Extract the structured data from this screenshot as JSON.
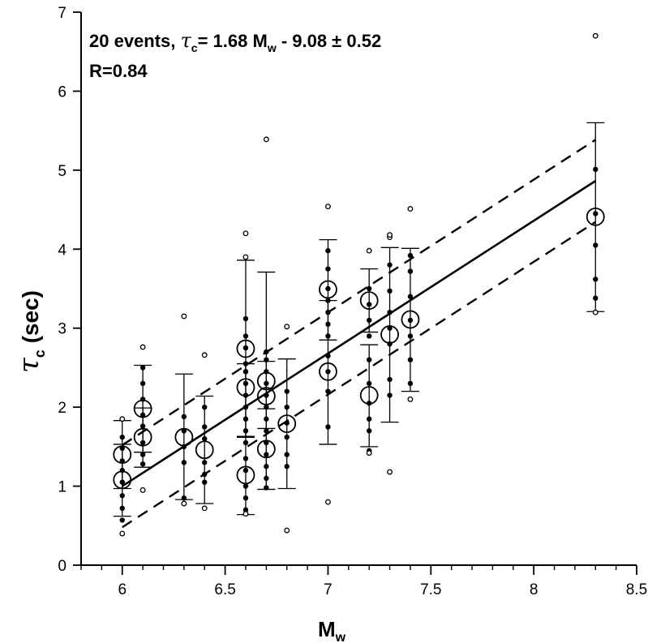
{
  "chart_data": {
    "type": "scatter",
    "title": "",
    "annotation": {
      "line1_prefix": "20 events, ",
      "tau_symbol": "τ",
      "sub_c": "c",
      "eq_mid": "= 1.68 M",
      "sub_w": "w",
      "eq_end": " - 9.08 ± 0.52",
      "line2": "R=0.84"
    },
    "xlabel": {
      "main": "M",
      "sub": "w"
    },
    "ylabel": {
      "main": "τ",
      "sub": "c",
      "rest": " (sec)"
    },
    "xlim": [
      5.8,
      8.5
    ],
    "ylim": [
      0,
      7
    ],
    "x_ticks": [
      6,
      6.5,
      7,
      7.5,
      8,
      8.5
    ],
    "x_tick_labels": [
      "6",
      "6.5",
      "7",
      "7.5",
      "8",
      "8.5"
    ],
    "y_ticks": [
      0,
      1,
      2,
      3,
      4,
      5,
      6,
      7
    ],
    "y_tick_labels": [
      "0",
      "1",
      "2",
      "3",
      "4",
      "5",
      "6",
      "7"
    ],
    "x_minor_step": 0.1,
    "grid": false,
    "regression": {
      "slope": 1.68,
      "intercept": -9.08,
      "sigma": 0.52,
      "x_range": [
        6.0,
        8.3
      ]
    },
    "events": [
      {
        "mw": 6.0,
        "mean": 1.08,
        "err_low": 0.62,
        "err_high": 1.53
      },
      {
        "mw": 6.0,
        "mean": 1.4,
        "err_low": 0.97,
        "err_high": 1.83
      },
      {
        "mw": 6.1,
        "mean": 1.62,
        "err_low": 1.24,
        "err_high": 1.99
      },
      {
        "mw": 6.1,
        "mean": 1.98,
        "err_low": 1.43,
        "err_high": 2.53
      },
      {
        "mw": 6.3,
        "mean": 1.62,
        "err_low": 0.83,
        "err_high": 2.42
      },
      {
        "mw": 6.4,
        "mean": 1.46,
        "err_low": 0.78,
        "err_high": 2.14
      },
      {
        "mw": 6.6,
        "mean": 1.14,
        "err_low": 0.64,
        "err_high": 1.63
      },
      {
        "mw": 6.6,
        "mean": 2.25,
        "err_low": 1.62,
        "err_high": 2.55
      },
      {
        "mw": 6.6,
        "mean": 2.74,
        "err_low": 1.62,
        "err_high": 3.86
      },
      {
        "mw": 6.7,
        "mean": 1.47,
        "err_low": 0.96,
        "err_high": 1.98
      },
      {
        "mw": 6.7,
        "mean": 2.14,
        "err_low": 1.73,
        "err_high": 2.58
      },
      {
        "mw": 6.7,
        "mean": 2.33,
        "err_low": 0.96,
        "err_high": 3.71
      },
      {
        "mw": 6.8,
        "mean": 1.79,
        "err_low": 0.97,
        "err_high": 2.61
      },
      {
        "mw": 7.0,
        "mean": 2.45,
        "err_low": 1.53,
        "err_high": 3.35
      },
      {
        "mw": 7.0,
        "mean": 3.49,
        "err_low": 2.85,
        "err_high": 4.12
      },
      {
        "mw": 7.2,
        "mean": 2.15,
        "err_low": 1.5,
        "err_high": 2.79
      },
      {
        "mw": 7.2,
        "mean": 3.35,
        "err_low": 2.95,
        "err_high": 3.75
      },
      {
        "mw": 7.3,
        "mean": 2.92,
        "err_low": 1.81,
        "err_high": 4.02
      },
      {
        "mw": 7.4,
        "mean": 3.11,
        "err_low": 2.2,
        "err_high": 4.01
      },
      {
        "mw": 8.3,
        "mean": 4.41,
        "err_low": 3.21,
        "err_high": 5.6
      }
    ],
    "station_points_filled": [
      {
        "x": 6.0,
        "y": [
          0.57,
          0.72,
          0.88,
          1.05,
          1.2,
          1.32,
          1.48,
          1.62
        ]
      },
      {
        "x": 6.1,
        "y": [
          1.28,
          1.4,
          1.55,
          1.76,
          1.9,
          2.1,
          2.3,
          2.5
        ]
      },
      {
        "x": 6.3,
        "y": [
          1.3,
          1.5,
          1.7,
          1.88,
          0.85
        ]
      },
      {
        "x": 6.4,
        "y": [
          1.05,
          1.15,
          1.3,
          1.6,
          1.75,
          2.0
        ]
      },
      {
        "x": 6.6,
        "y": [
          0.7,
          0.85,
          1.0,
          1.2,
          1.35,
          1.55,
          1.7,
          1.85,
          2.0,
          2.15,
          2.3,
          2.45,
          2.55,
          2.75,
          2.9,
          3.12
        ]
      },
      {
        "x": 6.7,
        "y": [
          0.98,
          1.1,
          1.25,
          1.4,
          1.55,
          1.7,
          1.85,
          2.0,
          2.15,
          2.3,
          2.45,
          2.6,
          2.7
        ]
      },
      {
        "x": 6.8,
        "y": [
          1.25,
          1.4,
          1.62,
          1.8,
          2.0,
          2.2
        ]
      },
      {
        "x": 7.0,
        "y": [
          1.75,
          2.2,
          2.45,
          2.65,
          2.9,
          3.05,
          3.2,
          3.35,
          3.5,
          3.75,
          3.98
        ]
      },
      {
        "x": 7.2,
        "y": [
          1.45,
          1.7,
          1.85,
          2.05,
          2.3,
          2.6,
          2.9,
          3.1,
          3.3,
          3.5
        ]
      },
      {
        "x": 7.3,
        "y": [
          2.15,
          2.35,
          2.8,
          3.0,
          3.2,
          3.47,
          3.8
        ]
      },
      {
        "x": 7.4,
        "y": [
          2.3,
          2.6,
          2.9,
          3.1,
          3.4,
          3.72,
          3.92
        ]
      },
      {
        "x": 8.3,
        "y": [
          3.38,
          3.62,
          4.05,
          4.45,
          5.01
        ]
      }
    ],
    "station_points_open": [
      {
        "x": 6.0,
        "y": [
          0.4,
          1.85
        ]
      },
      {
        "x": 6.1,
        "y": [
          0.95,
          2.76
        ]
      },
      {
        "x": 6.3,
        "y": [
          0.78,
          3.15
        ]
      },
      {
        "x": 6.4,
        "y": [
          0.72,
          2.66
        ]
      },
      {
        "x": 6.6,
        "y": [
          0.65,
          3.9,
          4.2
        ]
      },
      {
        "x": 6.7,
        "y": [
          5.39
        ]
      },
      {
        "x": 6.8,
        "y": [
          0.44,
          3.02
        ]
      },
      {
        "x": 7.0,
        "y": [
          0.8,
          4.54
        ]
      },
      {
        "x": 7.2,
        "y": [
          1.42,
          3.98
        ]
      },
      {
        "x": 7.3,
        "y": [
          1.18,
          4.15,
          4.18
        ]
      },
      {
        "x": 7.4,
        "y": [
          2.1,
          4.51
        ]
      },
      {
        "x": 8.3,
        "y": [
          3.2,
          6.7
        ]
      }
    ]
  }
}
